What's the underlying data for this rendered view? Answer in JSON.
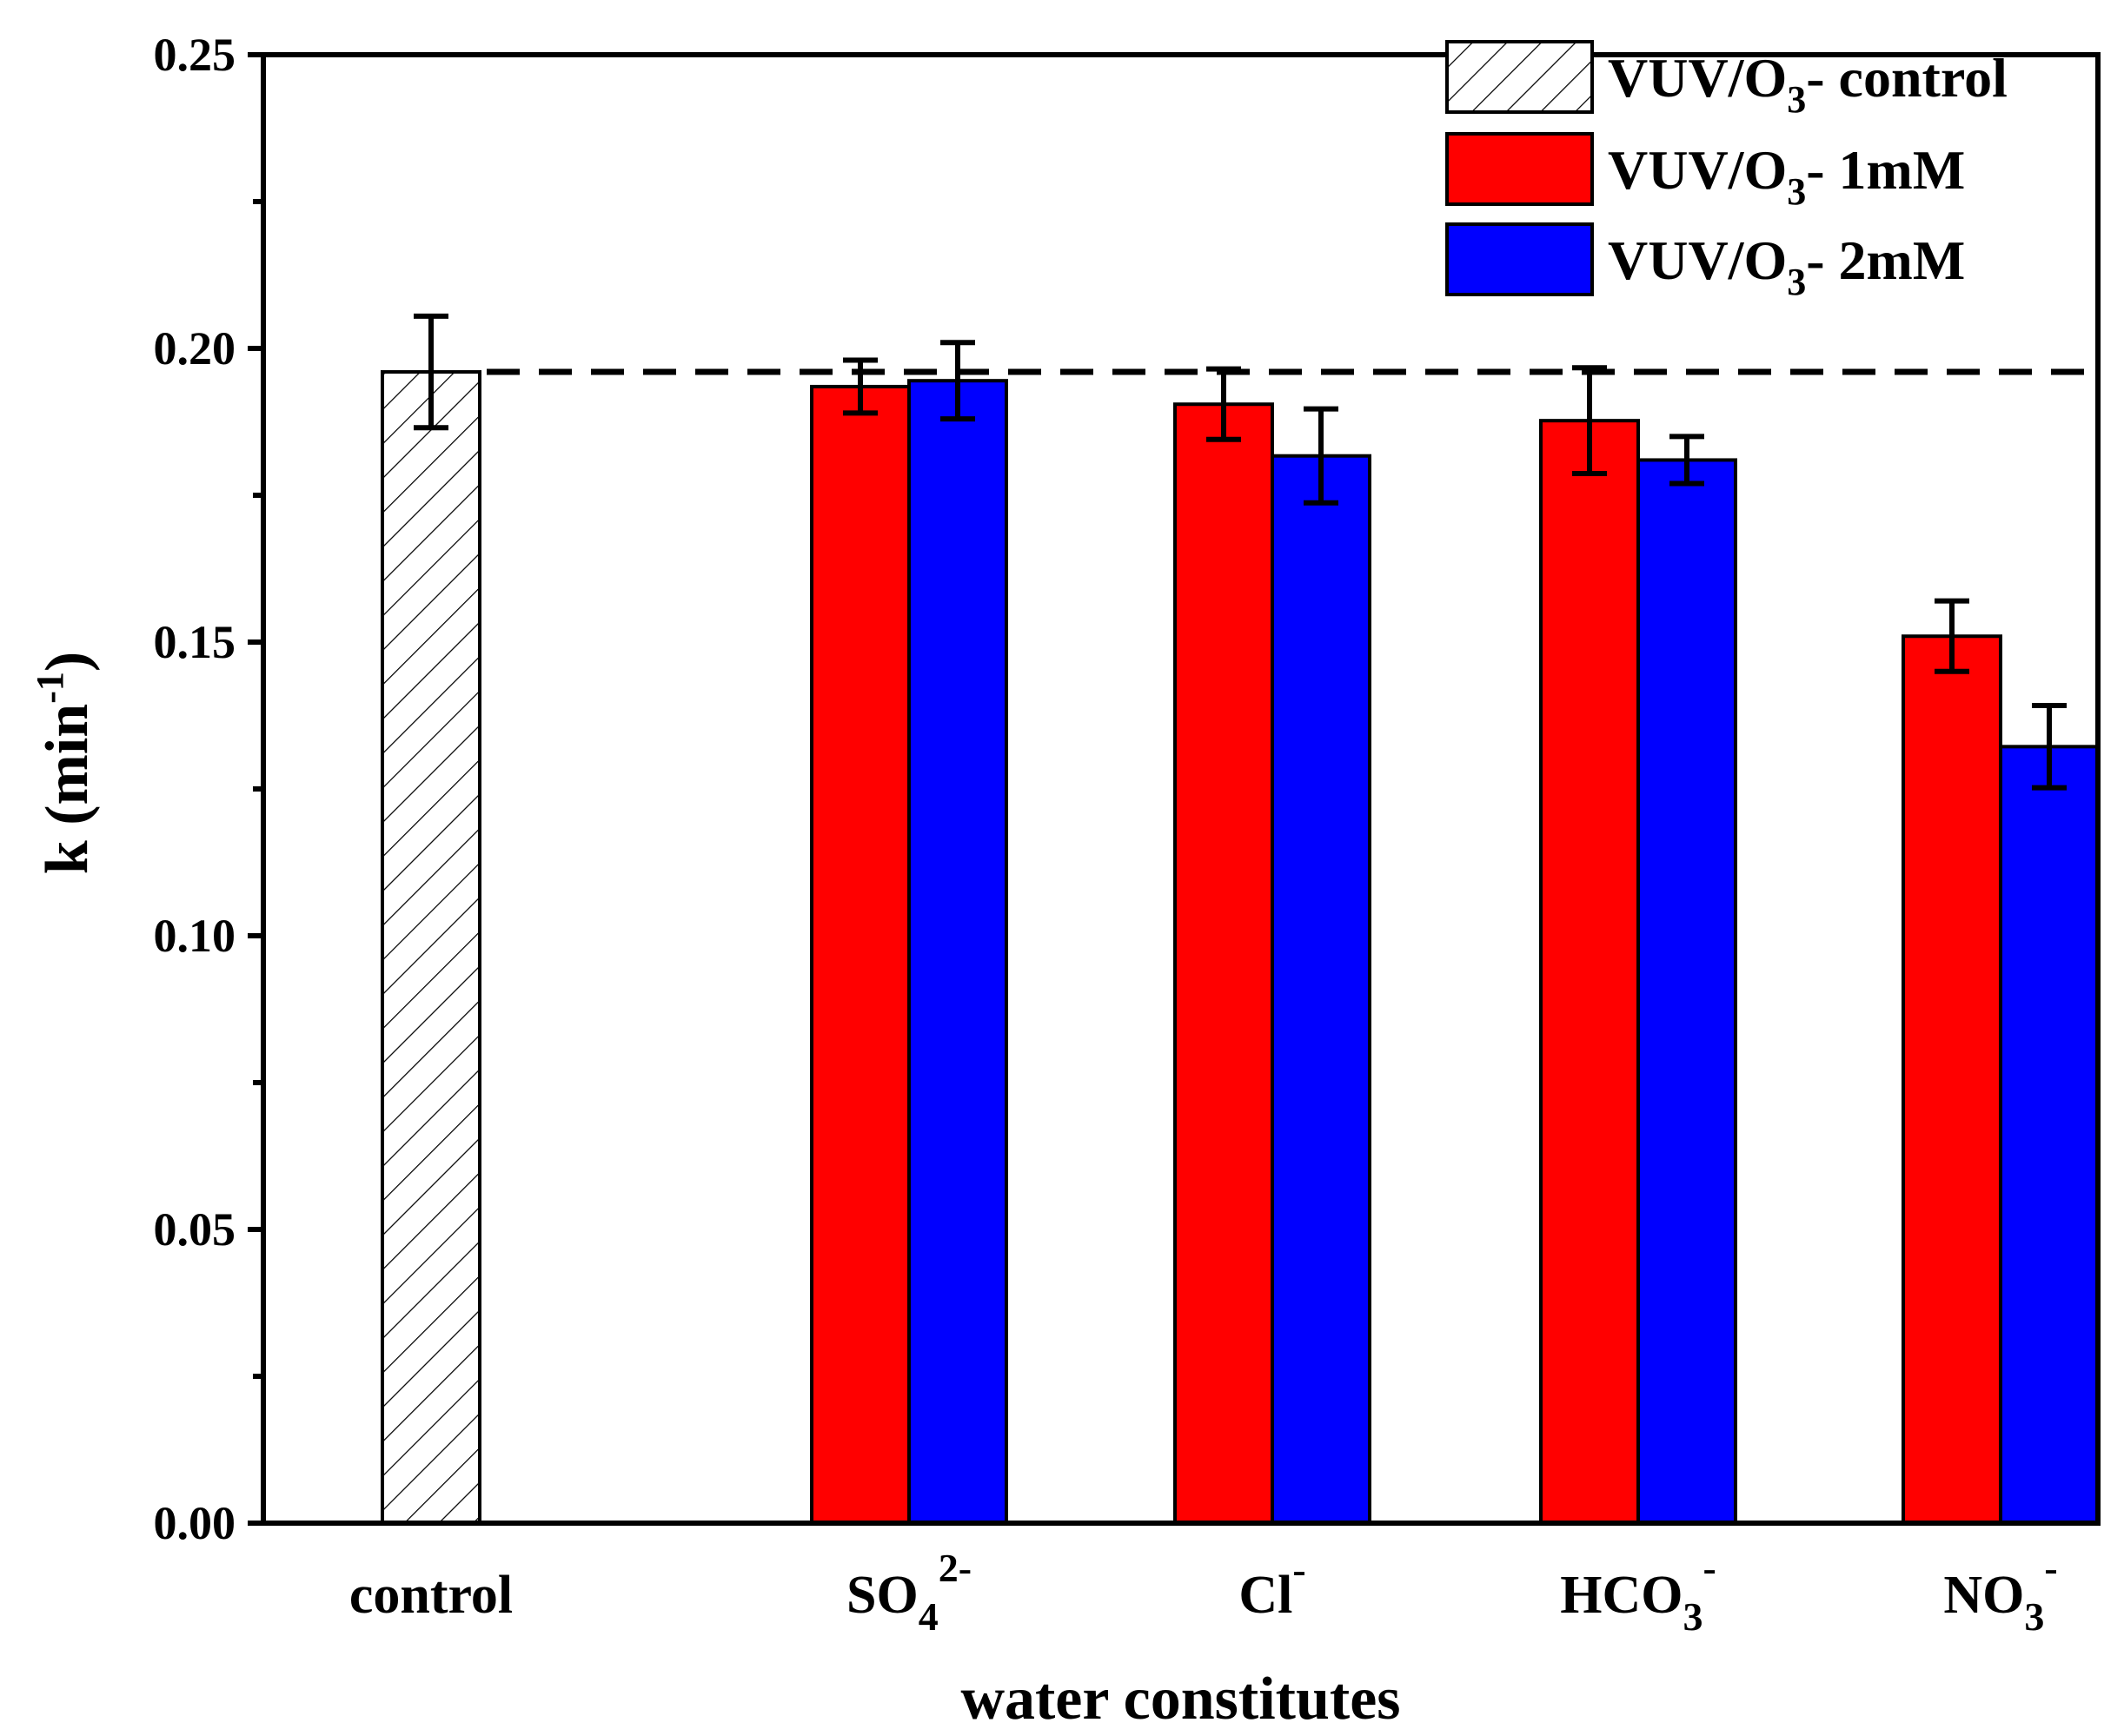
{
  "chart_data": {
    "type": "bar",
    "xlabel": "water constitutes",
    "ylabel": {
      "main": "k (min",
      "sup": "-1",
      "close": ")"
    },
    "ylim": [
      0,
      0.25
    ],
    "yticks": [
      "0.00",
      "0.05",
      "0.10",
      "0.15",
      "0.20",
      "0.25"
    ],
    "ytick_values": [
      0,
      0.05,
      0.1,
      0.15,
      0.2,
      0.25
    ],
    "categories": [
      {
        "id": "control",
        "base": "control",
        "sub": "",
        "sup": ""
      },
      {
        "id": "so4",
        "base": "SO",
        "sub": "4",
        "sup": "2-"
      },
      {
        "id": "cl",
        "base": "Cl",
        "sub": "",
        "sup": "-"
      },
      {
        "id": "hco3",
        "base": "HCO",
        "sub": "3",
        "sup": "-"
      },
      {
        "id": "no3",
        "base": "NO",
        "sub": "3",
        "sup": "-"
      }
    ],
    "series": [
      {
        "name": "VUV/O3- control",
        "label": {
          "pre": "VUV/O",
          "sub": "3",
          "post": "- control"
        },
        "color": "#ffffff",
        "pattern": "hatch",
        "values": [
          0.196,
          null,
          null,
          null,
          null
        ],
        "errors": [
          0.0095,
          null,
          null,
          null,
          null
        ]
      },
      {
        "name": "VUV/O3- 1mM",
        "label": {
          "pre": "VUV/O",
          "sub": "3",
          "post": "- 1mM"
        },
        "color": "#ff0000",
        "pattern": "solid",
        "values": [
          null,
          0.1935,
          0.1905,
          0.1877,
          0.151
        ],
        "errors": [
          null,
          0.0045,
          0.006,
          0.009,
          0.006
        ]
      },
      {
        "name": "VUV/O3- 2mM",
        "label": {
          "pre": "VUV/O",
          "sub": "3",
          "post": "- 2mM"
        },
        "color": "#0000ff",
        "pattern": "solid",
        "values": [
          null,
          0.1945,
          0.1817,
          0.181,
          0.1322
        ],
        "errors": [
          null,
          0.0065,
          0.008,
          0.004,
          0.007
        ]
      }
    ],
    "reference_line": {
      "value": 0.196,
      "style": "dashed"
    },
    "legend_position": "top-right",
    "grid": false
  }
}
